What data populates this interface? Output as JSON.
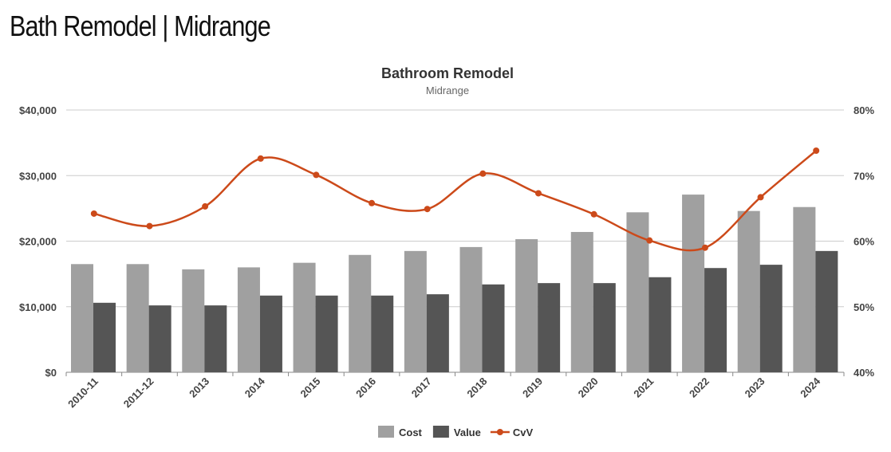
{
  "page_title": "Bath Remodel | Midrange",
  "chart_data": {
    "type": "bar",
    "title": "Bathroom Remodel",
    "subtitle": "Midrange",
    "categories": [
      "2010-11",
      "2011-12",
      "2013",
      "2014",
      "2015",
      "2016",
      "2017",
      "2018",
      "2019",
      "2020",
      "2021",
      "2022",
      "2023",
      "2024"
    ],
    "series": [
      {
        "name": "Cost",
        "type": "bar",
        "axis": "left",
        "color": "#a0a0a0",
        "values": [
          16500,
          16500,
          15700,
          16000,
          16700,
          17900,
          18500,
          19100,
          20300,
          21400,
          24400,
          27100,
          24600,
          25200
        ]
      },
      {
        "name": "Value",
        "type": "bar",
        "axis": "left",
        "color": "#555555",
        "values": [
          10600,
          10200,
          10200,
          11700,
          11700,
          11700,
          11900,
          13400,
          13600,
          13600,
          14500,
          15900,
          16400,
          18500
        ]
      },
      {
        "name": "CvV",
        "type": "line",
        "axis": "right",
        "color": "#cc4a1a",
        "values": [
          64.2,
          62.3,
          65.3,
          72.6,
          70.1,
          65.8,
          64.9,
          70.3,
          67.3,
          64.1,
          60.1,
          59.0,
          66.7,
          73.8
        ]
      }
    ],
    "left_axis": {
      "ylim": [
        0,
        40000
      ],
      "ticks": [
        "$0",
        "$10,000",
        "$20,000",
        "$30,000",
        "$40,000"
      ]
    },
    "right_axis": {
      "ylim": [
        40,
        80
      ],
      "ticks": [
        "40%",
        "50%",
        "60%",
        "70%",
        "80%"
      ]
    },
    "grid": true,
    "legend": "bottom"
  }
}
